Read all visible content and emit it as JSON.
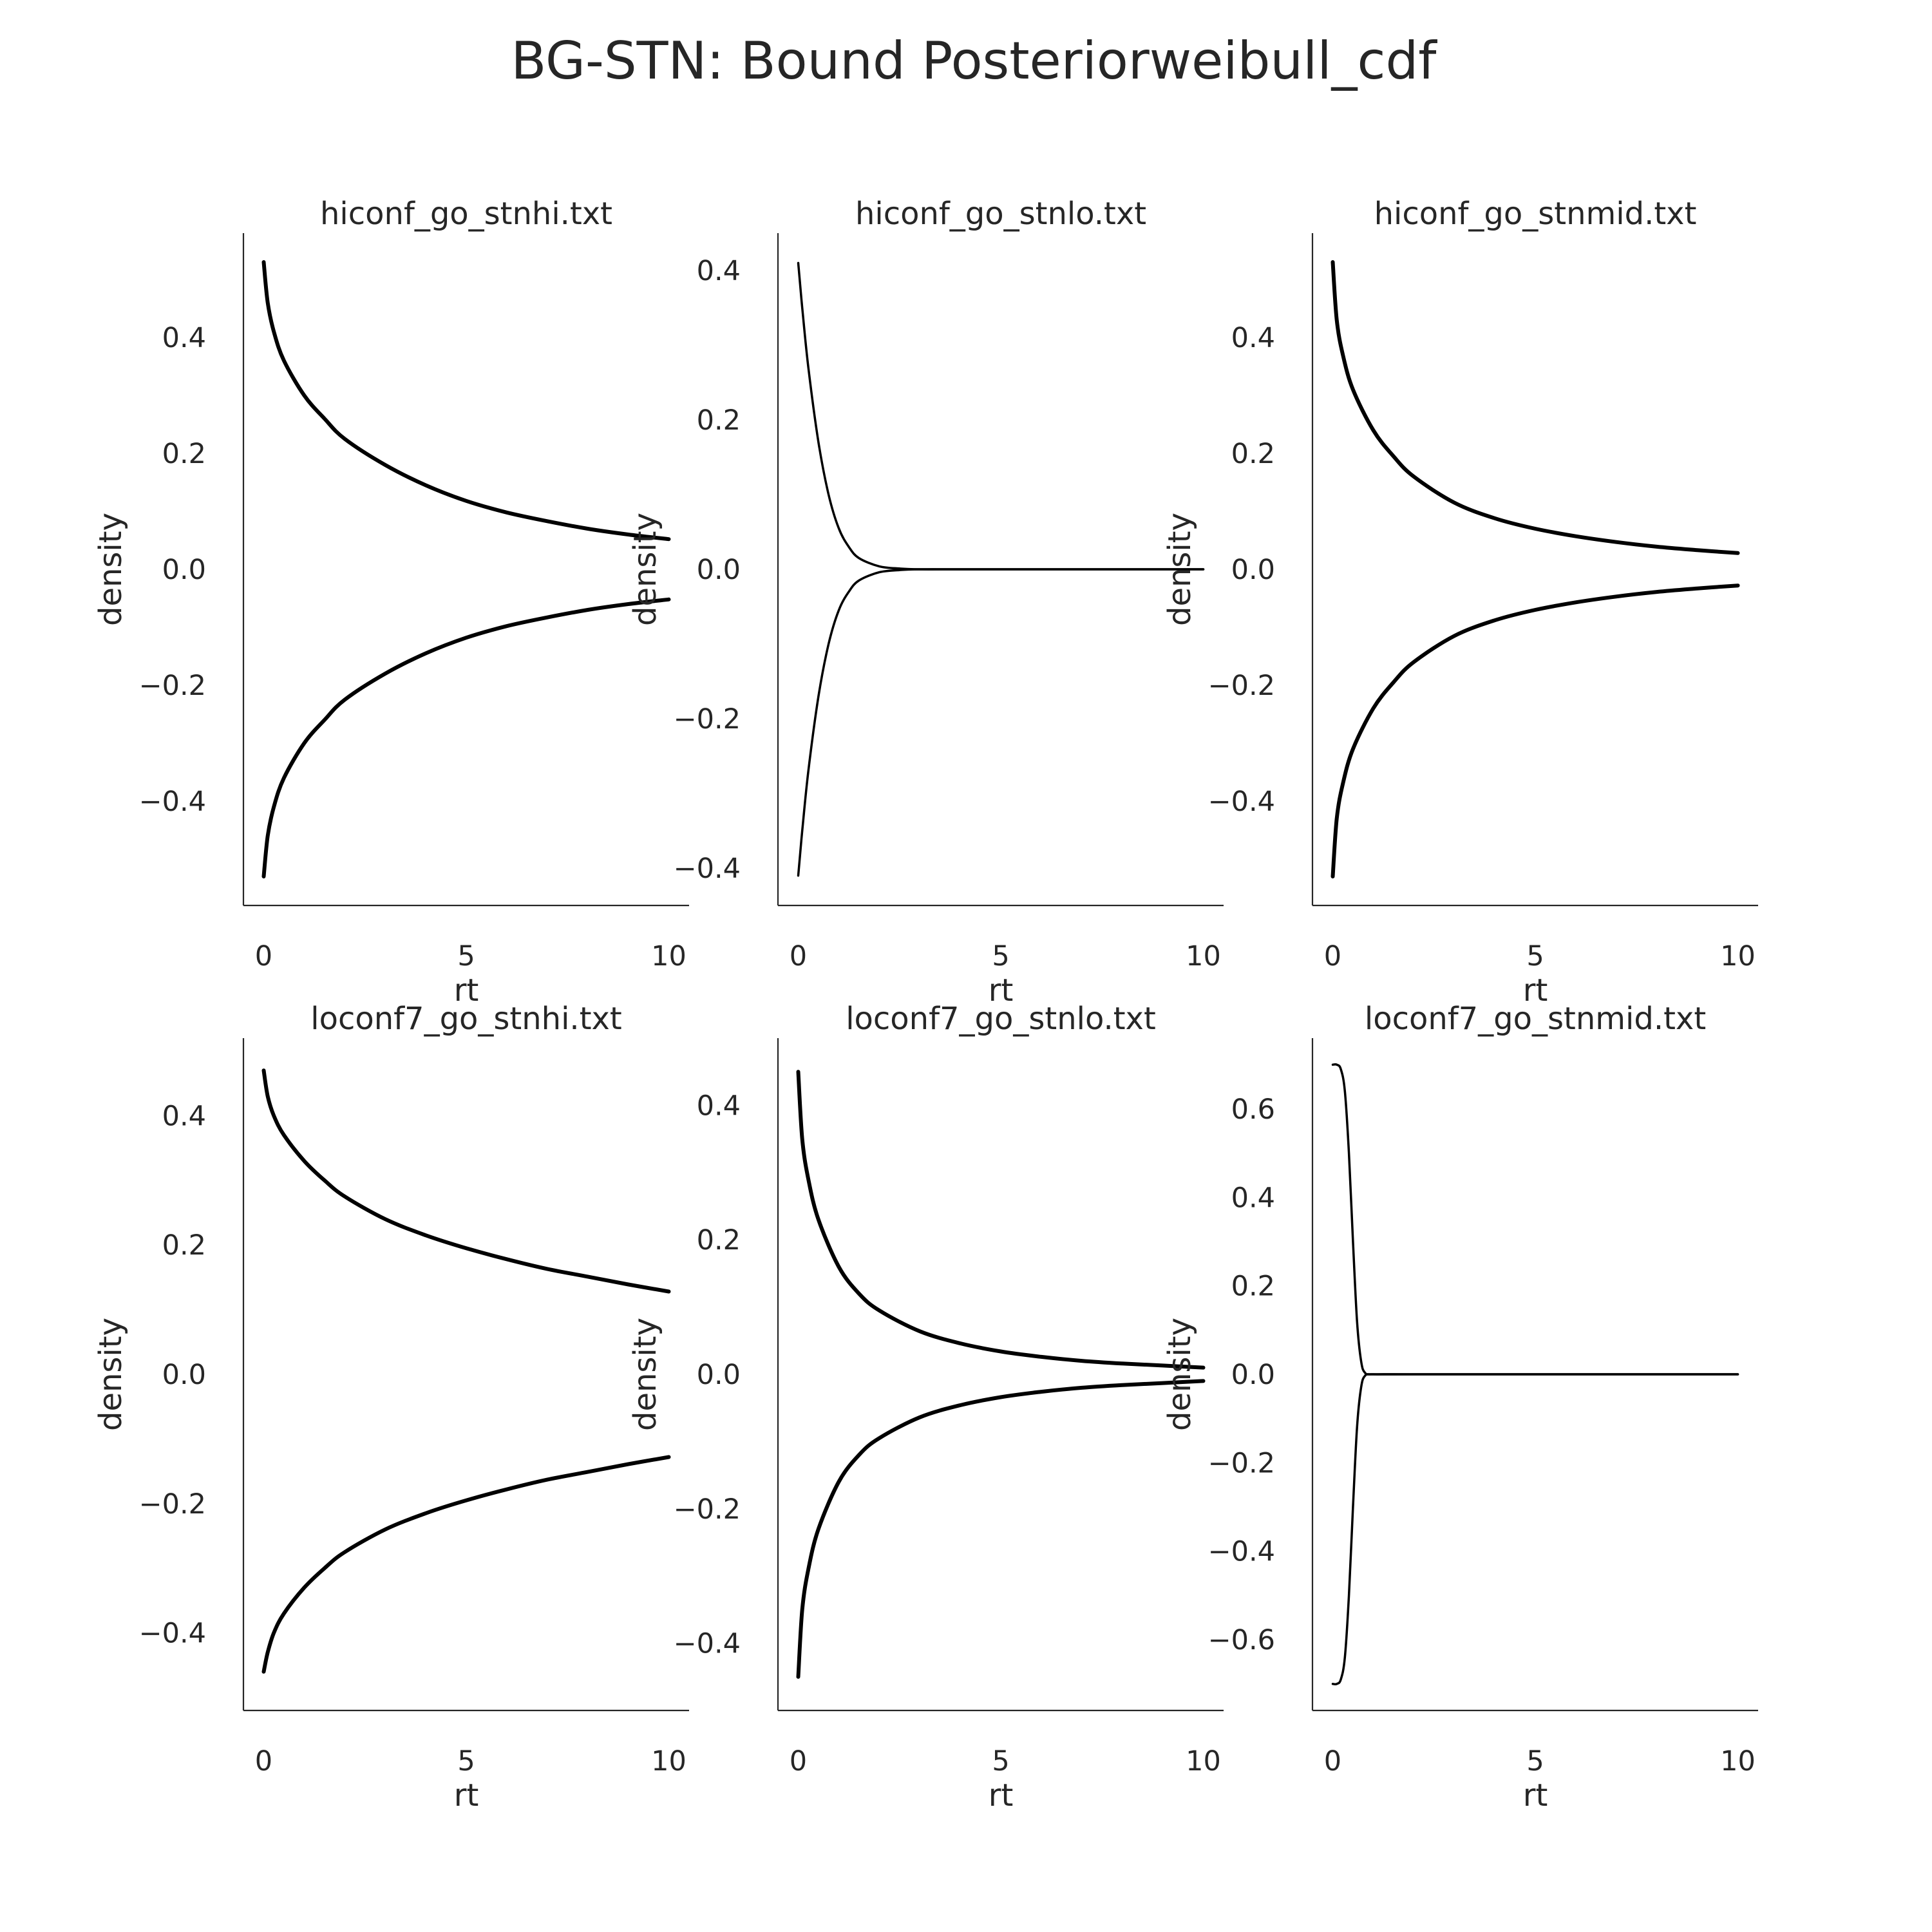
{
  "figure": {
    "title": "BG-STN: Bound Posteriorweibull_cdf"
  },
  "chart_data": [
    {
      "type": "line",
      "title": "hiconf_go_stnhi.txt",
      "xlabel": "rt",
      "ylabel": "density",
      "xlim": [
        -0.5,
        10.5
      ],
      "ylim": [
        -0.58,
        0.58
      ],
      "xticks": [
        0,
        5,
        10
      ],
      "xtick_labels": [
        "0",
        "5",
        "10"
      ],
      "yticks": [
        -0.4,
        -0.2,
        0.0,
        0.2,
        0.4
      ],
      "ytick_labels": [
        "−0.4",
        "−0.2",
        "0.0",
        "0.2",
        "0.4"
      ],
      "x_end": 10,
      "grid": false,
      "series": [
        {
          "x": [
            0,
            0.1,
            0.25,
            0.5,
            1,
            1.5,
            2,
            3,
            4,
            5,
            6,
            7,
            8,
            9,
            10
          ],
          "values": [
            0.53,
            0.46,
            0.41,
            0.36,
            0.3,
            0.26,
            0.225,
            0.18,
            0.145,
            0.118,
            0.098,
            0.083,
            0.07,
            0.06,
            0.052
          ]
        },
        {
          "x": [
            0,
            0.1,
            0.25,
            0.5,
            1,
            1.5,
            2,
            3,
            4,
            5,
            6,
            7,
            8,
            9,
            10
          ],
          "values": [
            -0.53,
            -0.46,
            -0.41,
            -0.36,
            -0.3,
            -0.26,
            -0.225,
            -0.18,
            -0.145,
            -0.118,
            -0.098,
            -0.083,
            -0.07,
            -0.06,
            -0.052
          ]
        }
      ]
    },
    {
      "type": "line",
      "title": "hiconf_go_stnlo.txt",
      "xlabel": "rt",
      "ylabel": "density",
      "xlim": [
        -0.5,
        10.5
      ],
      "ylim": [
        -0.45,
        0.45
      ],
      "xticks": [
        0,
        5,
        10
      ],
      "xtick_labels": [
        "0",
        "5",
        "10"
      ],
      "yticks": [
        -0.4,
        -0.2,
        0.0,
        0.2,
        0.4
      ],
      "ytick_labels": [
        "−0.4",
        "−0.2",
        "0.0",
        "0.2",
        "0.4"
      ],
      "x_end": 10,
      "grid": false,
      "series": [
        {
          "x": [
            0,
            0.1,
            0.25,
            0.5,
            0.75,
            1,
            1.25,
            1.5,
            2,
            2.5,
            3,
            4,
            5,
            6,
            7,
            8,
            9,
            10
          ],
          "values": [
            0.41,
            0.35,
            0.27,
            0.17,
            0.1,
            0.055,
            0.03,
            0.015,
            0.004,
            0.001,
            0,
            0,
            0,
            0,
            0,
            0,
            0,
            0
          ]
        },
        {
          "x": [
            0,
            0.1,
            0.25,
            0.5,
            0.75,
            1,
            1.25,
            1.5,
            2,
            2.5,
            3,
            4,
            5,
            6,
            7,
            8,
            9,
            10
          ],
          "values": [
            -0.41,
            -0.35,
            -0.27,
            -0.17,
            -0.1,
            -0.055,
            -0.03,
            -0.015,
            -0.004,
            -0.001,
            0,
            0,
            0,
            0,
            0,
            0,
            0,
            0
          ]
        }
      ]
    },
    {
      "type": "line",
      "title": "hiconf_go_stnmid.txt",
      "xlabel": "rt",
      "ylabel": "density",
      "xlim": [
        -0.5,
        10.5
      ],
      "ylim": [
        -0.58,
        0.58
      ],
      "xticks": [
        0,
        5,
        10
      ],
      "xtick_labels": [
        "0",
        "5",
        "10"
      ],
      "yticks": [
        -0.4,
        -0.2,
        0.0,
        0.2,
        0.4
      ],
      "ytick_labels": [
        "−0.4",
        "−0.2",
        "0.0",
        "0.2",
        "0.4"
      ],
      "x_end": 10,
      "grid": false,
      "series": [
        {
          "x": [
            0,
            0.1,
            0.25,
            0.5,
            1,
            1.5,
            2,
            3,
            4,
            5,
            6,
            7,
            8,
            9,
            10
          ],
          "values": [
            0.53,
            0.43,
            0.37,
            0.31,
            0.24,
            0.195,
            0.16,
            0.115,
            0.088,
            0.07,
            0.057,
            0.047,
            0.039,
            0.033,
            0.028
          ]
        },
        {
          "x": [
            0,
            0.1,
            0.25,
            0.5,
            1,
            1.5,
            2,
            3,
            4,
            5,
            6,
            7,
            8,
            9,
            10
          ],
          "values": [
            -0.53,
            -0.43,
            -0.37,
            -0.31,
            -0.24,
            -0.195,
            -0.16,
            -0.115,
            -0.088,
            -0.07,
            -0.057,
            -0.047,
            -0.039,
            -0.033,
            -0.028
          ]
        }
      ]
    },
    {
      "type": "line",
      "title": "loconf7_go_stnhi.txt",
      "xlabel": "rt",
      "ylabel": "density",
      "xlim": [
        -0.5,
        10.5
      ],
      "ylim": [
        -0.52,
        0.52
      ],
      "xticks": [
        0,
        5,
        10
      ],
      "xtick_labels": [
        "0",
        "5",
        "10"
      ],
      "yticks": [
        -0.4,
        -0.2,
        0.0,
        0.2,
        0.4
      ],
      "ytick_labels": [
        "−0.4",
        "−0.2",
        "0.0",
        "0.2",
        "0.4"
      ],
      "x_end": 10,
      "grid": false,
      "series": [
        {
          "x": [
            0,
            0.1,
            0.25,
            0.5,
            1,
            1.5,
            2,
            3,
            4,
            5,
            6,
            7,
            8,
            9,
            10
          ],
          "values": [
            0.47,
            0.43,
            0.4,
            0.37,
            0.33,
            0.3,
            0.275,
            0.24,
            0.215,
            0.195,
            0.178,
            0.163,
            0.151,
            0.139,
            0.128
          ]
        },
        {
          "x": [
            0,
            0.1,
            0.25,
            0.5,
            1,
            1.5,
            2,
            3,
            4,
            5,
            6,
            7,
            8,
            9,
            10
          ],
          "values": [
            -0.46,
            -0.43,
            -0.4,
            -0.37,
            -0.33,
            -0.3,
            -0.275,
            -0.24,
            -0.215,
            -0.195,
            -0.178,
            -0.163,
            -0.151,
            -0.139,
            -0.128
          ]
        }
      ]
    },
    {
      "type": "line",
      "title": "loconf7_go_stnlo.txt",
      "xlabel": "rt",
      "ylabel": "density",
      "xlim": [
        -0.5,
        10.5
      ],
      "ylim": [
        -0.5,
        0.5
      ],
      "xticks": [
        0,
        5,
        10
      ],
      "xtick_labels": [
        "0",
        "5",
        "10"
      ],
      "yticks": [
        -0.4,
        -0.2,
        0.0,
        0.2,
        0.4
      ],
      "ytick_labels": [
        "−0.4",
        "−0.2",
        "0.0",
        "0.2",
        "0.4"
      ],
      "x_end": 10,
      "grid": false,
      "series": [
        {
          "x": [
            0,
            0.1,
            0.25,
            0.5,
            1,
            1.5,
            2,
            3,
            4,
            5,
            6,
            7,
            8,
            9,
            10
          ],
          "values": [
            0.45,
            0.35,
            0.29,
            0.23,
            0.16,
            0.12,
            0.095,
            0.064,
            0.046,
            0.034,
            0.026,
            0.02,
            0.016,
            0.013,
            0.01
          ]
        },
        {
          "x": [
            0,
            0.1,
            0.25,
            0.5,
            1,
            1.5,
            2,
            3,
            4,
            5,
            6,
            7,
            8,
            9,
            10
          ],
          "values": [
            -0.45,
            -0.35,
            -0.29,
            -0.23,
            -0.16,
            -0.12,
            -0.095,
            -0.064,
            -0.046,
            -0.034,
            -0.026,
            -0.02,
            -0.016,
            -0.013,
            -0.01
          ]
        }
      ]
    },
    {
      "type": "line",
      "title": "loconf7_go_stnmid.txt",
      "xlabel": "rt",
      "ylabel": "density",
      "xlim": [
        -0.5,
        10.5
      ],
      "ylim": [
        -0.76,
        0.76
      ],
      "xticks": [
        0,
        5,
        10
      ],
      "xtick_labels": [
        "0",
        "5",
        "10"
      ],
      "yticks": [
        -0.6,
        -0.4,
        -0.2,
        0.0,
        0.2,
        0.4,
        0.6
      ],
      "ytick_labels": [
        "−0.6",
        "−0.4",
        "−0.2",
        "0.0",
        "0.2",
        "0.4",
        "0.6"
      ],
      "x_end": 10,
      "grid": false,
      "series": [
        {
          "x": [
            0,
            0.1,
            0.2,
            0.3,
            0.4,
            0.5,
            0.6,
            0.7,
            0.8,
            1,
            2,
            4,
            6,
            8,
            10
          ],
          "values": [
            0.7,
            0.7,
            0.69,
            0.64,
            0.5,
            0.3,
            0.12,
            0.03,
            0.003,
            0,
            0,
            0,
            0,
            0,
            0
          ]
        },
        {
          "x": [
            0,
            0.1,
            0.2,
            0.3,
            0.4,
            0.5,
            0.6,
            0.7,
            0.8,
            1,
            2,
            4,
            6,
            8,
            10
          ],
          "values": [
            -0.7,
            -0.7,
            -0.69,
            -0.64,
            -0.5,
            -0.3,
            -0.12,
            -0.03,
            -0.003,
            0,
            0,
            0,
            0,
            0,
            0
          ]
        }
      ]
    }
  ]
}
